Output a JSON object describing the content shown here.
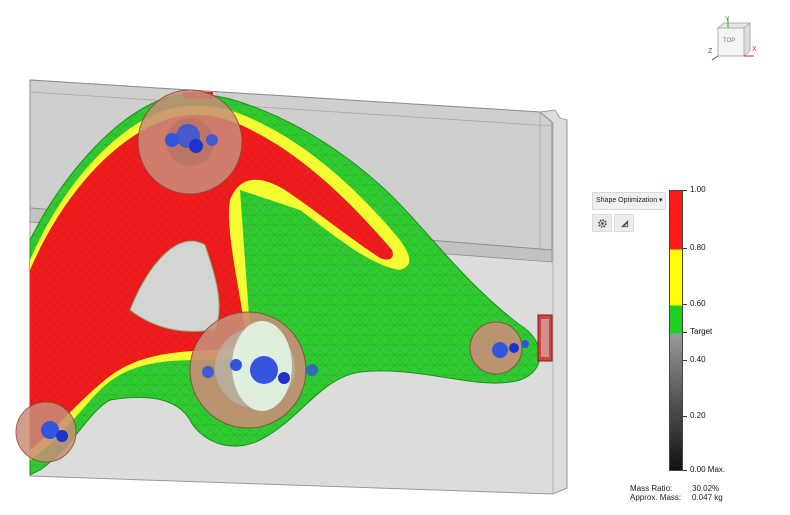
{
  "viewcube": {
    "face_label": "TOP",
    "axis_x": "X",
    "axis_y": "Y",
    "axis_z": "Z",
    "colors": {
      "x": "#dd2222",
      "y": "#33aa33",
      "z": "#3355cc"
    }
  },
  "results_panel": {
    "dropdown_label": "Shape Optimization ▾",
    "tools": [
      {
        "icon": "gear-icon"
      },
      {
        "icon": "ruler-triangle-icon"
      }
    ]
  },
  "legend": {
    "colors": {
      "red": "#ff1a1a",
      "yellow": "#ffff00",
      "green": "#1ecf1e",
      "gray_top": "#9a9a9a",
      "gray_bottom": "#111111"
    },
    "ticks": [
      {
        "label": "1.00"
      },
      {
        "label": "0.80"
      },
      {
        "label": "0.60"
      },
      {
        "label": "Target"
      },
      {
        "label": "0.40"
      },
      {
        "label": "0.20"
      },
      {
        "label": "0.00 Max."
      }
    ]
  },
  "stats": {
    "mass_ratio_label": "Mass Ratio:",
    "mass_ratio_value": "30.02%",
    "approx_mass_label": "Approx. Mass:",
    "approx_mass_value": "0.047 kg"
  }
}
